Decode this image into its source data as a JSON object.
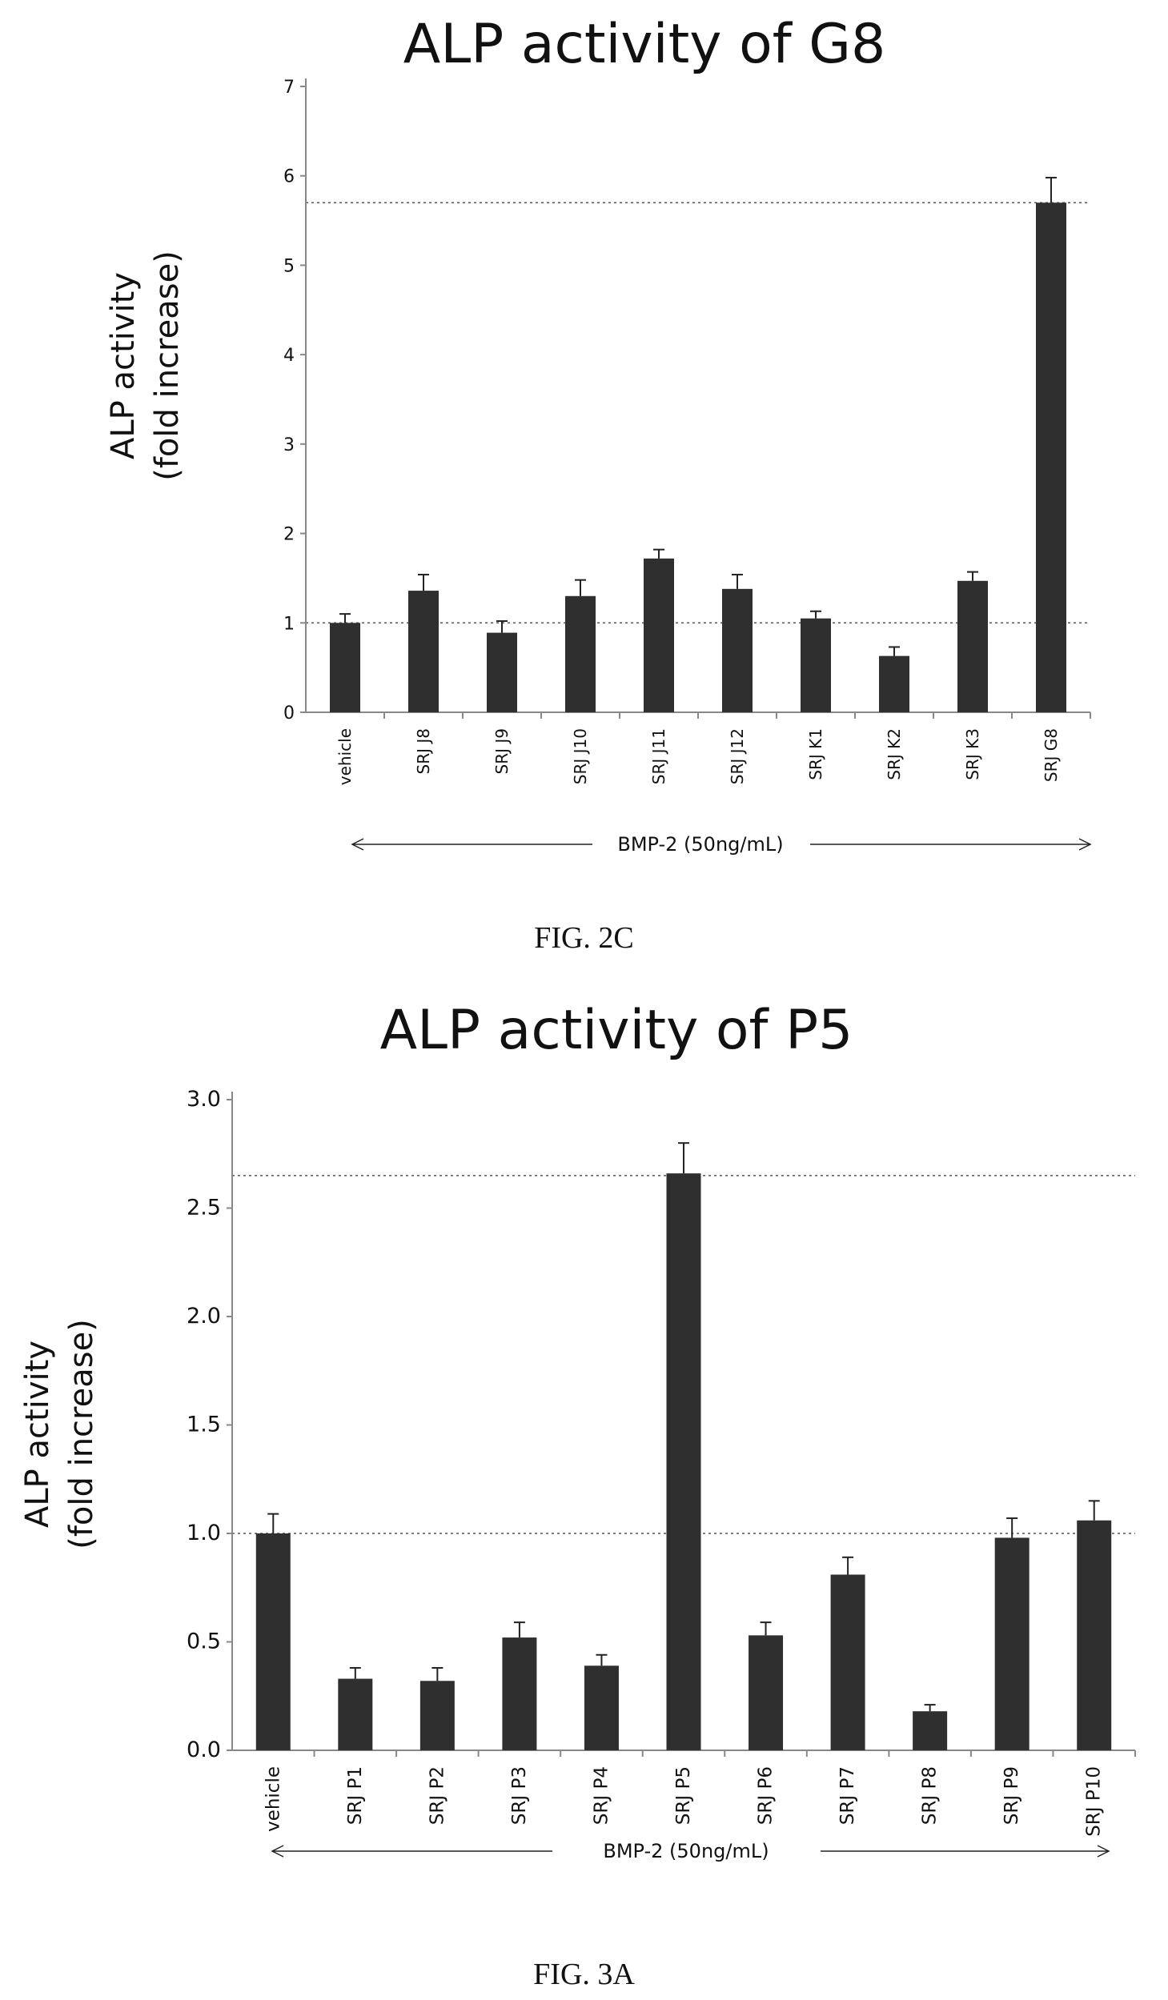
{
  "chart_data": [
    {
      "type": "bar",
      "title": "ALP activity of G8",
      "ylabel_line1": "ALP activity",
      "ylabel_line2": "(fold increase)",
      "xlabel": "",
      "categories": [
        "vehicle",
        "SRJ J8",
        "SRJ J9",
        "SRJ J10",
        "SRJ J11",
        "SRJ J12",
        "SRJ K1",
        "SRJ K2",
        "SRJ K3",
        "SRJ G8"
      ],
      "values": [
        1.0,
        1.36,
        0.89,
        1.3,
        1.72,
        1.38,
        1.05,
        0.63,
        1.47,
        5.7
      ],
      "errors": [
        0.1,
        0.18,
        0.13,
        0.18,
        0.1,
        0.16,
        0.08,
        0.1,
        0.1,
        0.28
      ],
      "ylim": [
        0,
        7
      ],
      "yticks": [
        "0",
        "1",
        "2",
        "3",
        "4",
        "5",
        "6",
        "7"
      ],
      "reference_lines": [
        1.0,
        5.7
      ],
      "bracket_label": "BMP-2 (50ng/mL)",
      "caption": "FIG. 2C",
      "bar_color": "#2f2f2f",
      "grid": false
    },
    {
      "type": "bar",
      "title": "ALP activity of P5",
      "ylabel_line1": "ALP activity",
      "ylabel_line2": "(fold increase)",
      "xlabel": "",
      "categories": [
        "vehicle",
        "SRJ P1",
        "SRJ P2",
        "SRJ P3",
        "SRJ P4",
        "SRJ P5",
        "SRJ P6",
        "SRJ P7",
        "SRJ P8",
        "SRJ P9",
        "SRJ P10"
      ],
      "values": [
        1.0,
        0.33,
        0.32,
        0.52,
        0.39,
        2.66,
        0.53,
        0.81,
        0.18,
        0.98,
        1.06
      ],
      "errors": [
        0.09,
        0.05,
        0.06,
        0.07,
        0.05,
        0.14,
        0.06,
        0.08,
        0.03,
        0.09,
        0.09
      ],
      "ylim": [
        0,
        3.0
      ],
      "yticks": [
        "0.0",
        "0.5",
        "1.0",
        "1.5",
        "2.0",
        "2.5",
        "3.0"
      ],
      "reference_lines": [
        1.0,
        2.65
      ],
      "bracket_label": "BMP-2 (50ng/mL)",
      "caption": "FIG. 3A",
      "bar_color": "#2f2f2f",
      "grid": false
    }
  ]
}
